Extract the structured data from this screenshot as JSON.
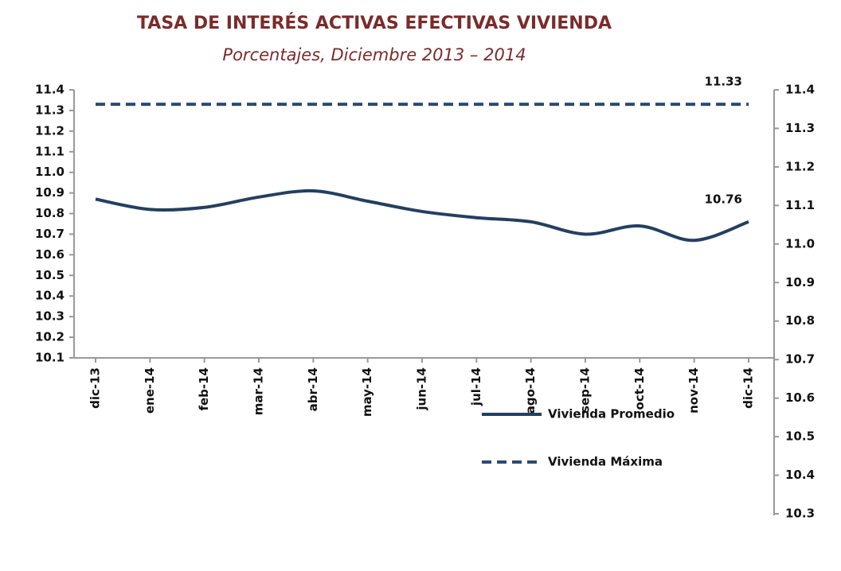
{
  "chart_data": {
    "type": "line",
    "title": "TASA DE INTERÉS ACTIVAS EFECTIVAS VIVIENDA",
    "subtitle": "Porcentajes, Diciembre  2013 – 2014",
    "categories": [
      "dic-13",
      "ene-14",
      "feb-14",
      "mar-14",
      "abr-14",
      "may-14",
      "jun-14",
      "jul-14",
      "ago-14",
      "sep-14",
      "oct-14",
      "nov-14",
      "dic-14"
    ],
    "series": [
      {
        "name": "Vivienda Promedio",
        "color": "#243f60",
        "dash": false,
        "values": [
          10.87,
          10.82,
          10.83,
          10.88,
          10.91,
          10.86,
          10.81,
          10.78,
          10.76,
          10.7,
          10.74,
          10.67,
          10.76
        ]
      },
      {
        "name": "Vivienda Máxima",
        "color": "#2b4a72",
        "dash": true,
        "values": [
          11.33,
          11.33,
          11.33,
          11.33,
          11.33,
          11.33,
          11.33,
          11.33,
          11.33,
          11.33,
          11.33,
          11.33,
          11.33
        ]
      }
    ],
    "ylim": [
      10.1,
      11.4
    ],
    "yticks": [
      10.1,
      10.2,
      10.3,
      10.4,
      10.5,
      10.6,
      10.7,
      10.8,
      10.9,
      {
        "value": 11,
        "label": "11.0"
      },
      11.1,
      11.2,
      11.3,
      11.4
    ],
    "y2lim": [
      10.3,
      11.4
    ],
    "y2ticks": [
      10.3,
      10.4,
      10.5,
      10.6,
      10.7,
      10.8,
      10.9,
      {
        "value": 11,
        "label": "11.0"
      },
      11.1,
      11.2,
      11.3,
      11.4
    ],
    "legend": "lower right"
  }
}
